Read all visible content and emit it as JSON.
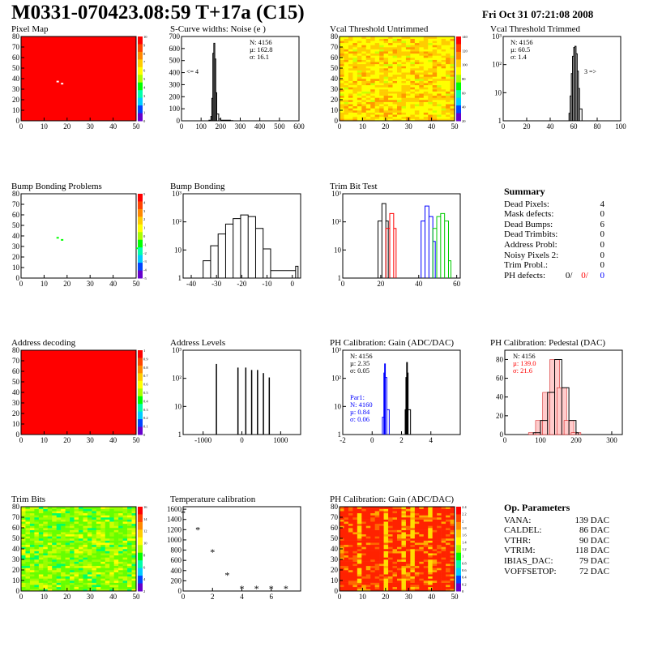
{
  "header": {
    "title": "M0331-070423.08:59 T+17a (C15)",
    "date": "Fri Oct 31 07:21:08 2008"
  },
  "colors": {
    "map_red": "#ff0000",
    "line_black": "#000000",
    "trim_red": "#ff0000",
    "trim_blue": "#0000ff",
    "trim_green": "#00cc00",
    "stat_red": "#ff0000",
    "stat_blue": "#0000ff"
  },
  "palette_ticks": {
    "p1": [
      "10",
      "9",
      "8",
      "7",
      "6",
      "5",
      "4",
      "3",
      "2",
      "1",
      "0"
    ],
    "p3": [
      "140",
      "120",
      "100",
      "80",
      "60",
      "40",
      "20"
    ],
    "p5": [
      "5",
      "4",
      "3",
      "2",
      "1",
      "0",
      "-1",
      "-2",
      "-3",
      "-4",
      "-5"
    ],
    "p9": [
      "1",
      "0.9",
      "0.8",
      "0.7",
      "0.6",
      "0.5",
      "0.4",
      "0.3",
      "0.2",
      "0.1",
      "0"
    ],
    "p13": [
      "16",
      "14",
      "12",
      "10",
      "8",
      "6",
      "4",
      "2"
    ],
    "p15": [
      "2.4",
      "2.2",
      "2",
      "1.8",
      "1.6",
      "1.4",
      "1.2",
      "1",
      "0.8",
      "0.6",
      "0.4",
      "0.2",
      "0"
    ]
  },
  "panels": [
    {
      "id": "p1",
      "title": "Pixel Map",
      "type": "heatmap",
      "fill": "uniform-red",
      "xticks": [
        "0",
        "10",
        "20",
        "30",
        "40",
        "50"
      ],
      "yticks": [
        "0",
        "10",
        "20",
        "30",
        "40",
        "50",
        "60",
        "70",
        "80"
      ],
      "palette": "p1"
    },
    {
      "id": "p2",
      "title": "S-Curve widths: Noise (e )",
      "type": "histogram",
      "xticks": [
        "0",
        "100",
        "200",
        "300",
        "400",
        "500",
        "600"
      ],
      "yticks": [
        "0",
        "100",
        "200",
        "300",
        "400",
        "500",
        "600",
        "700"
      ],
      "stats": [
        "N: 4156",
        "µ: 162.8",
        "σ: 16.1"
      ],
      "note": "<= 4"
    },
    {
      "id": "p3",
      "title": "Vcal Threshold Untrimmed",
      "type": "heatmap",
      "fill": "yellow-noise",
      "xticks": [
        "0",
        "10",
        "20",
        "30",
        "40",
        "50"
      ],
      "yticks": [
        "0",
        "10",
        "20",
        "30",
        "40",
        "50",
        "60",
        "70",
        "80"
      ],
      "palette": "p3"
    },
    {
      "id": "p4",
      "title": "Vcal Threshold Trimmed",
      "type": "histogram",
      "log": true,
      "xticks": [
        "0",
        "20",
        "40",
        "60",
        "80",
        "100"
      ],
      "yticks": [
        "1",
        "10",
        "10²",
        "10³"
      ],
      "stats": [
        "N: 4156",
        "µ: 60.5",
        "σ: 1.4"
      ],
      "note": "3 =>"
    },
    {
      "id": "p5",
      "title": "Bump Bonding Problems",
      "type": "heatmap",
      "fill": "white",
      "xticks": [
        "0",
        "10",
        "20",
        "30",
        "40",
        "50"
      ],
      "yticks": [
        "0",
        "10",
        "20",
        "30",
        "40",
        "50",
        "60",
        "70",
        "80"
      ],
      "palette": "p5"
    },
    {
      "id": "p6",
      "title": "Bump Bonding",
      "type": "histogram",
      "log": true,
      "xticks": [
        "-40",
        "-30",
        "-20",
        "-10",
        "0"
      ],
      "yticks": [
        "1",
        "10",
        "10²",
        "10³"
      ]
    },
    {
      "id": "p7",
      "title": "Trim Bit Test",
      "type": "histogram",
      "log": true,
      "xticks": [
        "0",
        "20",
        "40",
        "60"
      ],
      "yticks": [
        "1",
        "10",
        "10²",
        "10³"
      ]
    },
    {
      "id": "p9",
      "title": "Address decoding",
      "type": "heatmap",
      "fill": "uniform-red",
      "xticks": [
        "0",
        "10",
        "20",
        "30",
        "40",
        "50"
      ],
      "yticks": [
        "0",
        "10",
        "20",
        "30",
        "40",
        "50",
        "60",
        "70",
        "80"
      ],
      "palette": "p9"
    },
    {
      "id": "p10",
      "title": "Address Levels",
      "type": "histogram",
      "log": true,
      "xticks": [
        "-1000",
        "0",
        "1000"
      ],
      "yticks": [
        "1",
        "10",
        "10²",
        "10³"
      ]
    },
    {
      "id": "p11",
      "title": "PH Calibration: Gain (ADC/DAC)",
      "type": "histogram",
      "log": true,
      "xticks": [
        "-2",
        "0",
        "2",
        "4"
      ],
      "yticks": [
        "1",
        "10",
        "10²",
        "10³"
      ],
      "stats": [
        "N: 4156",
        "µ: 2.35",
        "σ: 0.05"
      ],
      "stats2_title": "Par1:",
      "stats2": [
        "N: 4160",
        "µ: 0.84",
        "σ: 0.06"
      ]
    },
    {
      "id": "p12",
      "title": "PH Calibration: Pedestal (DAC)",
      "type": "histogram",
      "xticks": [
        "0",
        "100",
        "200",
        "300"
      ],
      "yticks": [
        "0",
        "20",
        "40",
        "60",
        "80"
      ],
      "stats": [
        "N: 4156"
      ],
      "stats_red": [
        "µ: 139.0",
        "σ: 21.6"
      ]
    },
    {
      "id": "p13",
      "title": "Trim Bits",
      "type": "heatmap",
      "fill": "green-noise",
      "xticks": [
        "0",
        "10",
        "20",
        "30",
        "40",
        "50"
      ],
      "yticks": [
        "0",
        "10",
        "20",
        "30",
        "40",
        "50",
        "60",
        "70",
        "80"
      ],
      "palette": "p13"
    },
    {
      "id": "p14",
      "title": "Temperature calibration",
      "type": "scatter",
      "xticks": [
        "0",
        "2",
        "4",
        "6"
      ],
      "yticks": [
        "0",
        "200",
        "400",
        "600",
        "800",
        "1000",
        "1200",
        "1400",
        "1600"
      ]
    },
    {
      "id": "p15",
      "title": "PH Calibration: Gain (ADC/DAC)",
      "type": "heatmap",
      "fill": "red-noise",
      "xticks": [
        "0",
        "10",
        "20",
        "30",
        "40",
        "50"
      ],
      "yticks": [
        "0",
        "10",
        "20",
        "30",
        "40",
        "50",
        "60",
        "70",
        "80"
      ],
      "palette": "p15"
    }
  ],
  "summary": {
    "title": "Summary",
    "rows": [
      {
        "label": "Dead Pixels:",
        "value": "4"
      },
      {
        "label": "Mask defects:",
        "value": "0"
      },
      {
        "label": "Dead Bumps:",
        "value": "6"
      },
      {
        "label": "Dead Trimbits:",
        "value": "0"
      },
      {
        "label": "Address Probl:",
        "value": "0"
      },
      {
        "label": "Noisy Pixels 2:",
        "value": "0"
      },
      {
        "label": "Trim Probl.:",
        "value": "0"
      }
    ],
    "ph_label": "PH defects:",
    "ph_values": [
      "0/",
      "0/",
      "0"
    ]
  },
  "op_params": {
    "title": "Op. Parameters",
    "rows": [
      {
        "label": "VANA:",
        "value": "139 DAC"
      },
      {
        "label": "CALDEL:",
        "value": "86 DAC"
      },
      {
        "label": "VTHR:",
        "value": "90 DAC"
      },
      {
        "label": "VTRIM:",
        "value": "118 DAC"
      },
      {
        "label": "IBIAS_DAC:",
        "value": "79 DAC"
      },
      {
        "label": "VOFFSETOP:",
        "value": "72 DAC"
      }
    ]
  },
  "chart_data": [
    {
      "type": "heatmap",
      "title": "Pixel Map",
      "x_range": [
        0,
        52
      ],
      "y_range": [
        0,
        80
      ],
      "fill": "uniform red (value 10)",
      "defects": [
        [
          16,
          38
        ],
        [
          18,
          36
        ]
      ]
    },
    {
      "type": "bar",
      "title": "S-Curve widths: Noise (e )",
      "x": [
        140,
        150,
        155,
        160,
        165,
        170,
        175,
        180,
        190,
        200,
        250
      ],
      "values": [
        5,
        40,
        200,
        600,
        690,
        550,
        250,
        60,
        15,
        5,
        2
      ],
      "xlim": [
        0,
        600
      ],
      "ylim": [
        0,
        750
      ]
    },
    {
      "type": "heatmap",
      "title": "Vcal Threshold Untrimmed",
      "x_range": [
        0,
        52
      ],
      "y_range": [
        0,
        80
      ],
      "fill": "yellow/orange noise around 60-80"
    },
    {
      "type": "bar",
      "title": "Vcal Threshold Trimmed",
      "log": true,
      "x": [
        56,
        57,
        58,
        59,
        60,
        61,
        62,
        63,
        64,
        65
      ],
      "values": [
        2,
        10,
        80,
        400,
        900,
        1000,
        500,
        100,
        20,
        3
      ],
      "xlim": [
        0,
        100
      ]
    },
    {
      "type": "heatmap",
      "title": "Bump Bonding Problems",
      "x_range": [
        0,
        52
      ],
      "y_range": [
        0,
        80
      ],
      "defects": [
        [
          16,
          39
        ],
        [
          18,
          37
        ],
        [
          52,
          29
        ]
      ]
    },
    {
      "type": "bar",
      "title": "Bump Bonding",
      "log": true,
      "x": [
        -40,
        -37,
        -34,
        -31,
        -28,
        -25,
        -22,
        -19,
        -16,
        -13,
        -10,
        0
      ],
      "values": [
        1,
        5,
        20,
        60,
        150,
        250,
        350,
        300,
        100,
        15,
        2,
        3
      ],
      "xlim": [
        -45,
        2
      ]
    },
    {
      "type": "bar",
      "title": "Trim Bit Test",
      "log": true,
      "series": [
        {
          "color": "black",
          "x": [
            18,
            20,
            22
          ],
          "values": [
            200,
            1000,
            200
          ]
        },
        {
          "color": "red",
          "x": [
            22,
            24,
            26
          ],
          "values": [
            100,
            400,
            100
          ]
        },
        {
          "color": "blue",
          "x": [
            40,
            42,
            44,
            46
          ],
          "values": [
            200,
            800,
            300,
            30
          ]
        },
        {
          "color": "green",
          "x": [
            46,
            48,
            50,
            52,
            54
          ],
          "values": [
            100,
            300,
            400,
            200,
            5
          ]
        }
      ],
      "xlim": [
        0,
        60
      ]
    },
    {
      "type": "heatmap",
      "title": "Address decoding",
      "x_range": [
        0,
        52
      ],
      "y_range": [
        0,
        80
      ],
      "fill": "uniform red (value 1)"
    },
    {
      "type": "bar",
      "title": "Address Levels",
      "log": true,
      "x": [
        -650,
        -100,
        100,
        250,
        400,
        550,
        700
      ],
      "values": [
        700,
        500,
        500,
        400,
        400,
        300,
        200
      ],
      "xlim": [
        -1500,
        1500
      ]
    },
    {
      "type": "bar",
      "title": "PH Calibration: Gain (ADC/DAC)",
      "log": true,
      "series": [
        {
          "color": "black",
          "x": [
            2.25,
            2.3,
            2.35,
            2.4,
            2.45
          ],
          "values": [
            10,
            200,
            800,
            300,
            10
          ]
        },
        {
          "color": "blue",
          "x": [
            0.7,
            0.8,
            0.85,
            0.9,
            1.0
          ],
          "values": [
            5,
            300,
            700,
            200,
            10
          ]
        }
      ],
      "xlim": [
        -2,
        6
      ]
    },
    {
      "type": "bar",
      "title": "PH Calibration: Pedestal (DAC)",
      "x": [
        80,
        100,
        120,
        140,
        160,
        180,
        200
      ],
      "values": [
        2,
        15,
        45,
        80,
        50,
        15,
        2
      ],
      "xlim": [
        0,
        330
      ],
      "ylim": [
        0,
        90
      ]
    },
    {
      "type": "heatmap",
      "title": "Trim Bits",
      "x_range": [
        0,
        52
      ],
      "y_range": [
        0,
        80
      ],
      "fill": "green/yellow noise"
    },
    {
      "type": "scatter",
      "title": "Temperature calibration",
      "x": [
        0,
        1,
        2,
        3,
        4,
        5,
        6,
        7
      ],
      "values": [
        1520,
        1200,
        760,
        310,
        50,
        50,
        50,
        50
      ],
      "xlim": [
        0,
        8
      ],
      "ylim": [
        0,
        1650
      ]
    },
    {
      "type": "heatmap",
      "title": "PH Calibration: Gain (ADC/DAC)",
      "x_range": [
        0,
        52
      ],
      "y_range": [
        0,
        80
      ],
      "fill": "red noise with yellow columns"
    }
  ]
}
